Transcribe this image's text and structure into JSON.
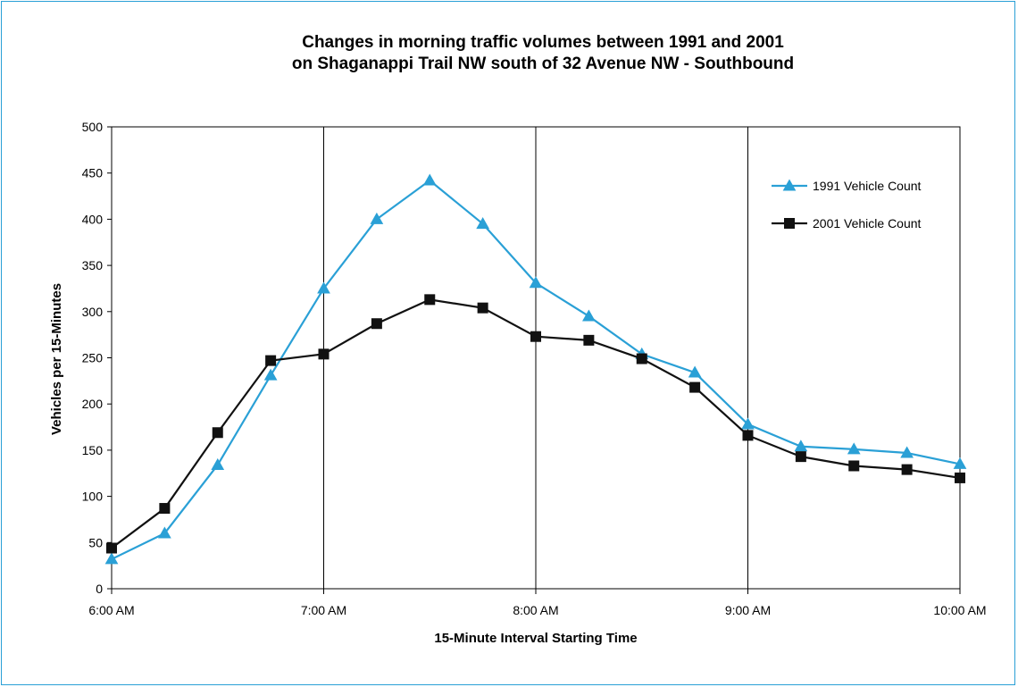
{
  "chart_data": {
    "type": "line",
    "title": "Changes in morning traffic volumes between 1991 and 2001",
    "subtitle": "on Shaganappi Trail NW south of 32 Avenue NW - Southbound",
    "xlabel": "15-Minute Interval Starting Time",
    "ylabel": "Vehicles per 15-Minutes",
    "ylim": [
      0,
      500
    ],
    "yticks": [
      0,
      50,
      100,
      150,
      200,
      250,
      300,
      350,
      400,
      450,
      500
    ],
    "x_tick_labels": [
      "6:00 AM",
      "7:00 AM",
      "8:00 AM",
      "9:00 AM",
      "10:00 AM"
    ],
    "x": [
      "6:00 AM",
      "6:15 AM",
      "6:30 AM",
      "6:45 AM",
      "7:00 AM",
      "7:15 AM",
      "7:30 AM",
      "7:45 AM",
      "8:00 AM",
      "8:15 AM",
      "8:30 AM",
      "8:45 AM",
      "9:00 AM",
      "9:15 AM",
      "9:30 AM",
      "9:45 AM",
      "10:00 AM"
    ],
    "series": [
      {
        "name": "1991 Vehicle Count",
        "color": "#2aa0d6",
        "marker": "triangle",
        "values": [
          32,
          60,
          134,
          231,
          325,
          400,
          442,
          395,
          331,
          295,
          254,
          234,
          178,
          154,
          151,
          147,
          135
        ]
      },
      {
        "name": "2001 Vehicle Count",
        "color": "#111111",
        "marker": "square",
        "values": [
          44,
          87,
          169,
          247,
          254,
          287,
          313,
          304,
          273,
          269,
          249,
          218,
          166,
          143,
          133,
          129,
          120
        ]
      }
    ],
    "grid": "vertical lines at each hour",
    "legend_position": "top-right"
  }
}
